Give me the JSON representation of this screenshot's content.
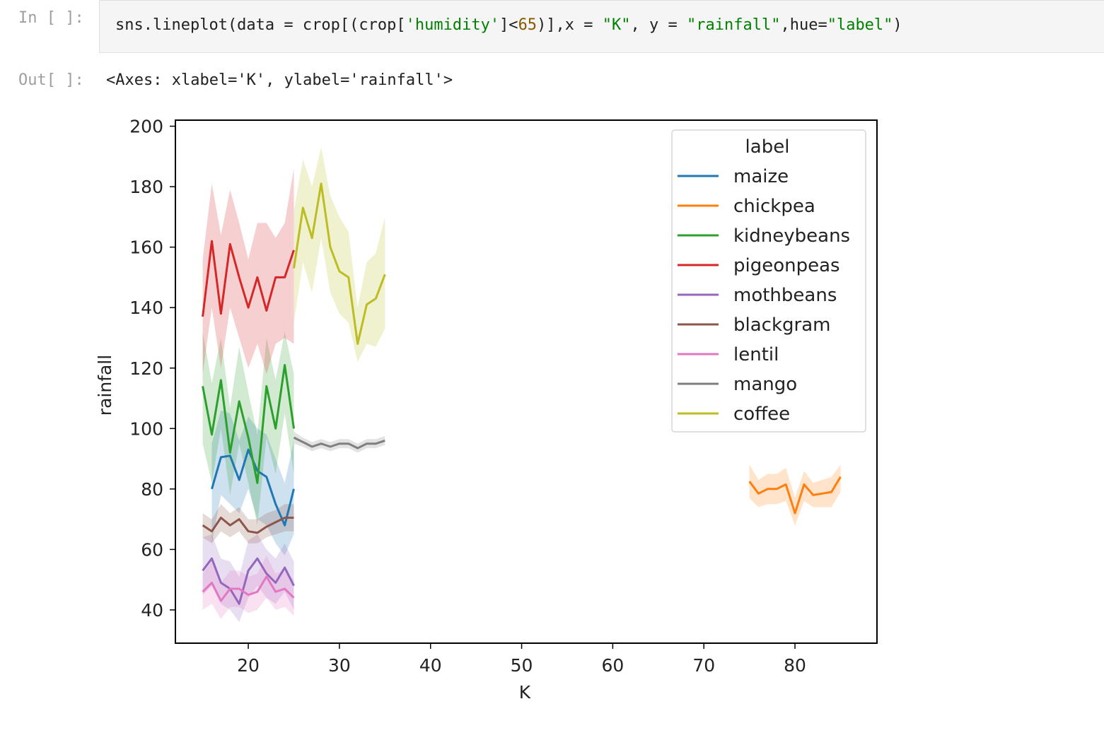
{
  "cell": {
    "in_prompt": "In [ ]:",
    "out_prompt": "Out[ ]:",
    "code_tokens": [
      {
        "t": "sns.lineplot(data = crop[(crop[",
        "c": ""
      },
      {
        "t": "'humidity'",
        "c": "str"
      },
      {
        "t": "]<",
        "c": ""
      },
      {
        "t": "65",
        "c": "num"
      },
      {
        "t": ")],x = ",
        "c": ""
      },
      {
        "t": "\"K\"",
        "c": "str"
      },
      {
        "t": ", y = ",
        "c": ""
      },
      {
        "t": "\"rainfall\"",
        "c": "str"
      },
      {
        "t": ",hue=",
        "c": ""
      },
      {
        "t": "\"label\"",
        "c": "str"
      },
      {
        "t": ")",
        "c": ""
      }
    ],
    "output_text": "<Axes: xlabel='K', ylabel='rainfall'>"
  },
  "chart_data": {
    "type": "line",
    "xlabel": "K",
    "ylabel": "rainfall",
    "xlim": [
      12,
      89
    ],
    "ylim": [
      29,
      202
    ],
    "xticks": [
      20,
      30,
      40,
      50,
      60,
      70,
      80
    ],
    "yticks": [
      40,
      60,
      80,
      100,
      120,
      140,
      160,
      180,
      200
    ],
    "grid": false,
    "legend": {
      "title": "label",
      "placement": "upper-right"
    },
    "series": [
      {
        "name": "maize",
        "color": "#1f77b4",
        "x": [
          16,
          17,
          18,
          19,
          20,
          21,
          22,
          23,
          24,
          25
        ],
        "y": [
          80,
          90.5,
          91,
          83,
          93,
          86,
          84,
          75,
          68,
          80
        ],
        "lo": [
          62,
          78,
          75,
          72,
          80,
          70,
          68,
          62,
          58,
          65
        ],
        "hi": [
          95,
          106,
          105,
          96,
          104,
          100,
          98,
          90,
          82,
          96
        ]
      },
      {
        "name": "chickpea",
        "color": "#ff7f0e",
        "x": [
          75,
          76,
          77,
          78,
          79,
          80,
          81,
          82,
          83,
          84,
          85
        ],
        "y": [
          82.5,
          78.5,
          80,
          80,
          81.5,
          72,
          81.5,
          78,
          78.5,
          79,
          84
        ],
        "lo": [
          77,
          74,
          75,
          75,
          76,
          68,
          76,
          74,
          74,
          74,
          79
        ],
        "hi": [
          88,
          83,
          85,
          85,
          87,
          77,
          86,
          82,
          83,
          84,
          88
        ]
      },
      {
        "name": "kidneybeans",
        "color": "#2ca02c",
        "x": [
          15,
          16,
          17,
          18,
          19,
          20,
          21,
          22,
          23,
          24,
          25
        ],
        "y": [
          114,
          98,
          116,
          92,
          109,
          97,
          82,
          114,
          100,
          121,
          100
        ],
        "lo": [
          95,
          82,
          100,
          78,
          95,
          82,
          68,
          97,
          85,
          105,
          85
        ],
        "hi": [
          132,
          115,
          130,
          107,
          127,
          112,
          98,
          130,
          116,
          132,
          118
        ]
      },
      {
        "name": "pigeonpeas",
        "color": "#d62728",
        "x": [
          15,
          16,
          17,
          18,
          19,
          20,
          21,
          22,
          23,
          24,
          25
        ],
        "y": [
          137,
          162,
          138,
          161,
          150,
          140,
          150,
          139,
          150,
          150,
          159
        ],
        "lo": [
          118,
          140,
          120,
          140,
          130,
          120,
          128,
          118,
          128,
          130,
          128
        ],
        "hi": [
          156,
          181,
          164,
          179,
          168,
          156,
          168,
          168,
          163,
          168,
          186
        ]
      },
      {
        "name": "mothbeans",
        "color": "#9467bd",
        "x": [
          15,
          16,
          17,
          18,
          19,
          20,
          21,
          22,
          23,
          24,
          25
        ],
        "y": [
          53,
          57,
          49,
          47,
          42,
          53,
          57,
          52,
          49,
          54,
          48
        ],
        "lo": [
          45,
          48,
          42,
          40,
          36,
          44,
          48,
          44,
          42,
          46,
          40
        ],
        "hi": [
          64,
          65,
          57,
          56,
          51,
          63,
          65,
          60,
          57,
          62,
          56
        ]
      },
      {
        "name": "blackgram",
        "color": "#8c564b",
        "x": [
          15,
          16,
          17,
          18,
          19,
          20,
          21,
          22,
          23,
          24,
          25
        ],
        "y": [
          68,
          66,
          70.5,
          68,
          70,
          66,
          65.5,
          67.5,
          69,
          70.5,
          70.5
        ],
        "lo": [
          64,
          62,
          66,
          64,
          66,
          62,
          62,
          64,
          65,
          66,
          66
        ],
        "hi": [
          72,
          70,
          75,
          72,
          74,
          70,
          70,
          72,
          73,
          75,
          75
        ]
      },
      {
        "name": "lentil",
        "color": "#e377c2",
        "x": [
          15,
          16,
          17,
          18,
          19,
          20,
          21,
          22,
          23,
          24,
          25
        ],
        "y": [
          46,
          49,
          43,
          47,
          47,
          45,
          46,
          51,
          46,
          47,
          44
        ],
        "lo": [
          40,
          42,
          37,
          41,
          41,
          39,
          40,
          44,
          40,
          41,
          38
        ],
        "hi": [
          52,
          56,
          49,
          53,
          53,
          51,
          52,
          58,
          52,
          53,
          50
        ]
      },
      {
        "name": "mango",
        "color": "#7f7f7f",
        "x": [
          25,
          26,
          27,
          28,
          29,
          30,
          31,
          32,
          33,
          34,
          35
        ],
        "y": [
          97,
          95.5,
          94,
          95,
          94,
          95,
          95,
          93.5,
          95,
          95,
          96
        ],
        "lo": [
          95,
          94,
          92.5,
          93.5,
          92.5,
          93.5,
          93.5,
          92,
          93.5,
          93.5,
          94.5
        ],
        "hi": [
          99,
          97,
          95.5,
          96.5,
          95.5,
          96.5,
          96.5,
          95,
          96.5,
          96.5,
          97.5
        ]
      },
      {
        "name": "coffee",
        "color": "#bcbd22",
        "x": [
          25,
          26,
          27,
          28,
          29,
          30,
          31,
          32,
          33,
          34,
          35
        ],
        "y": [
          153,
          173,
          163,
          181,
          160,
          152,
          150,
          128,
          141,
          143,
          151
        ],
        "lo": [
          135,
          155,
          145,
          163,
          145,
          138,
          135,
          122,
          128,
          127,
          133
        ],
        "hi": [
          172,
          189,
          180,
          193,
          177,
          170,
          165,
          140,
          155,
          158,
          170
        ]
      }
    ]
  }
}
